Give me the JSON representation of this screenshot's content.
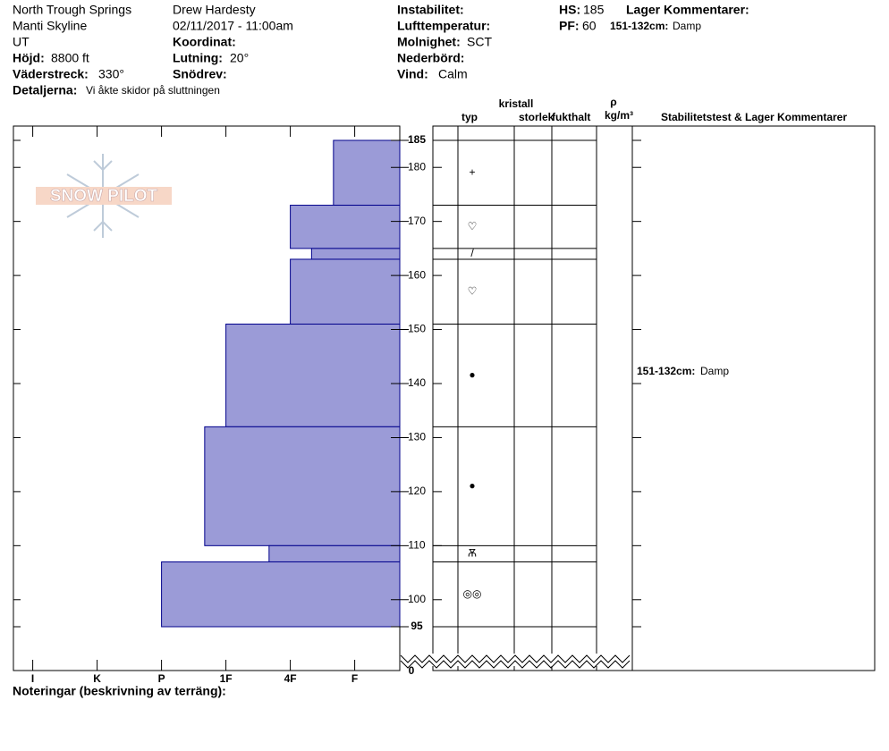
{
  "header": {
    "location": "North Trough Springs",
    "range": "Manti Skyline",
    "state": "UT",
    "elevation": {
      "label": "Höjd:",
      "value": "8800 ft"
    },
    "aspect": {
      "label": "Väderstreck:",
      "value": "330°"
    },
    "details": {
      "label": "Detaljerna:",
      "value": "Vi åkte skidor på sluttningen"
    },
    "observer": "Drew Hardesty",
    "datetime": "02/11/2017 - 11:00am",
    "coordinate": {
      "label": "Koordinat:"
    },
    "slope": {
      "label": "Lutning:",
      "value": "20°"
    },
    "wind_loading": {
      "label": "Snödrev:"
    },
    "instability": {
      "label": "Instabilitet:"
    },
    "air_temp": {
      "label": "Lufttemperatur:"
    },
    "sky": {
      "label": "Molnighet:",
      "value": "SCT"
    },
    "precip": {
      "label": "Nederbörd:"
    },
    "wind": {
      "label": "Vind:",
      "value": "Calm"
    },
    "hs": {
      "label": "HS:",
      "value": 185
    },
    "pf": {
      "label": "PF:",
      "value": 60
    },
    "layer_comments": {
      "label": "Lager Kommentarer:",
      "range": "151-132cm:",
      "text": "Damp"
    }
  },
  "logo": "SNOW PILOT",
  "columns": {
    "crystal": "kristall",
    "type": "typ",
    "size": "storlek",
    "moisture": "fukthalt",
    "density": "ρ",
    "density_unit": "kg/m³",
    "comments": "Stabilitetstest & Lager Kommentarer"
  },
  "profile": {
    "ylim": [
      95,
      185
    ],
    "yticks": [
      185,
      180,
      170,
      160,
      150,
      140,
      130,
      120,
      110,
      100,
      95
    ],
    "base_depth": 0,
    "xlim": [
      0.7,
      6.7
    ],
    "xticks": [
      {
        "value": 1,
        "label": "I"
      },
      {
        "value": 2,
        "label": "K"
      },
      {
        "value": 3,
        "label": "P"
      },
      {
        "value": 4,
        "label": "1F"
      },
      {
        "value": 5,
        "label": "4F"
      },
      {
        "value": 6,
        "label": "F"
      }
    ],
    "color": "#9b9bd7",
    "layers": [
      {
        "top": 185,
        "bottom": 173,
        "hardness": 5.67,
        "crystal": "+"
      },
      {
        "top": 173,
        "bottom": 165,
        "hardness": 5,
        "crystal": "♡"
      },
      {
        "top": 165,
        "bottom": 163,
        "hardness": 5.33,
        "crystal": "/"
      },
      {
        "top": 163,
        "bottom": 151,
        "hardness": 5,
        "crystal": "♡"
      },
      {
        "top": 151,
        "bottom": 132,
        "hardness": 4,
        "crystal": "●",
        "comment": {
          "range": "151-132cm:",
          "text": "Damp"
        }
      },
      {
        "top": 132,
        "bottom": 110,
        "hardness": 3.67,
        "crystal": "●"
      },
      {
        "top": 110,
        "bottom": 107,
        "hardness": 4.67,
        "crystal": "Ѫ"
      },
      {
        "top": 107,
        "bottom": 95,
        "hardness": 3,
        "crystal": "◎◎"
      }
    ]
  },
  "notes": "Noteringar (beskrivning av terräng):"
}
